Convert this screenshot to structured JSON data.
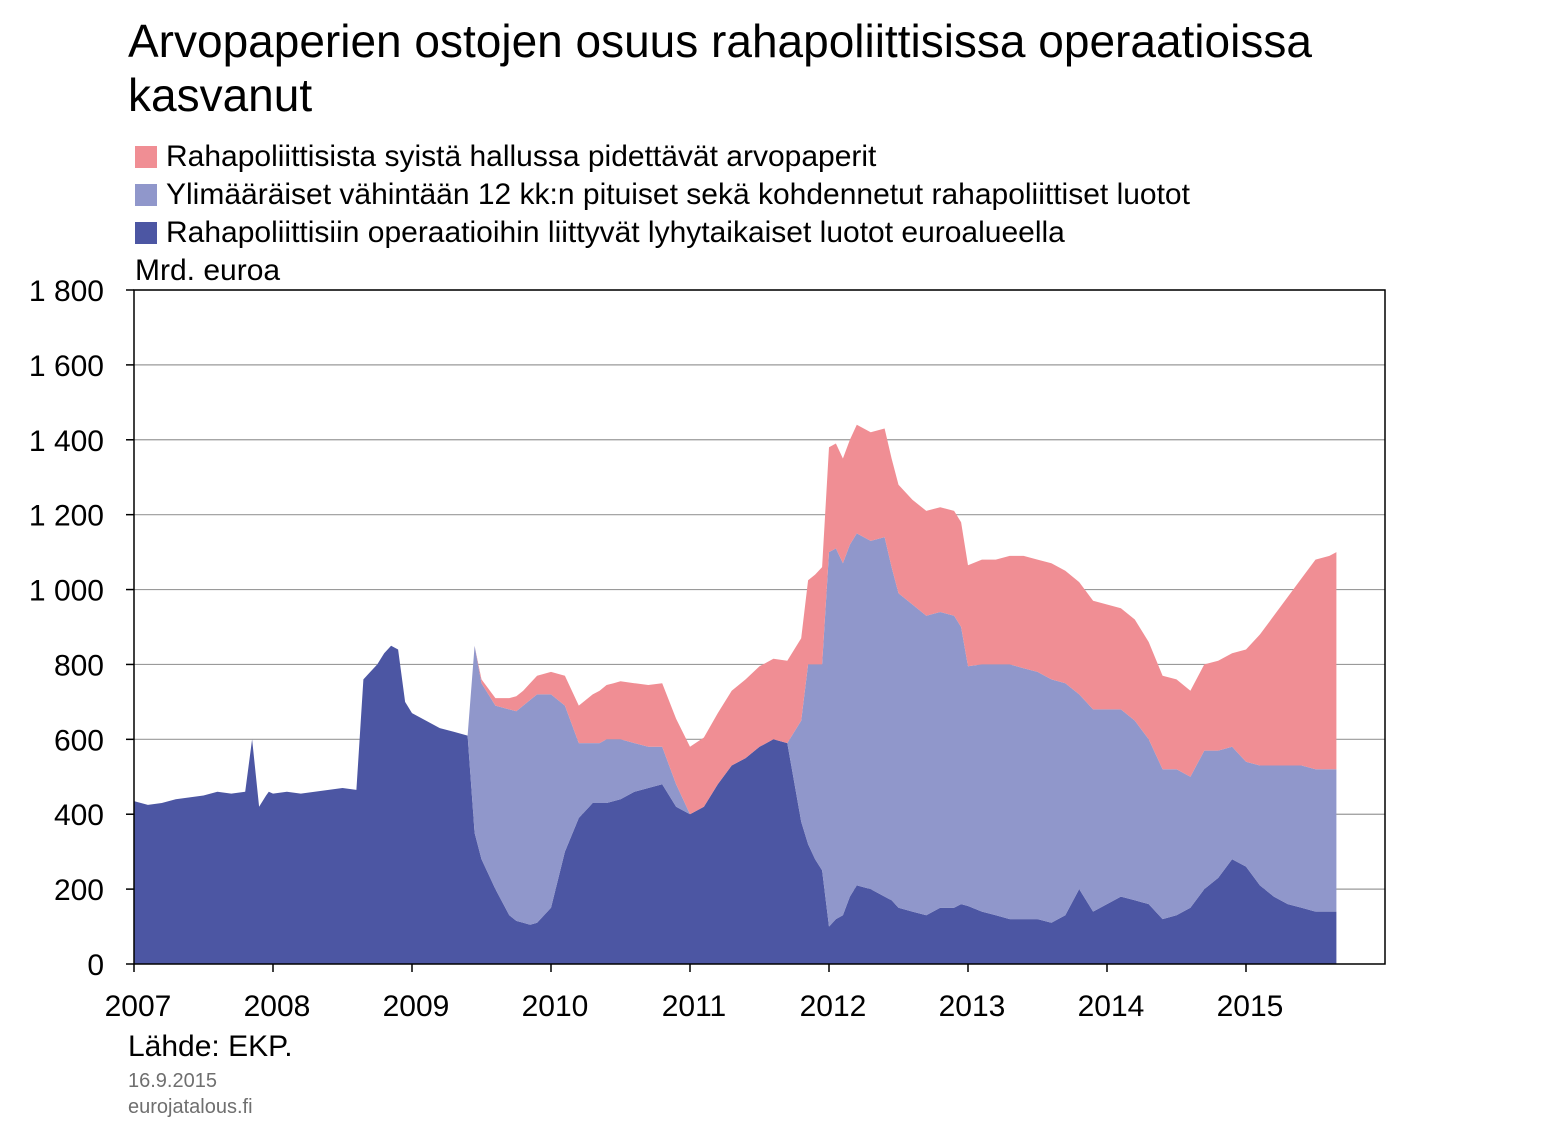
{
  "chart_data": {
    "type": "area",
    "stacked": true,
    "title": "Arvopaperien ostojen osuus rahapoliittisissa operaatioissa kasvanut",
    "unit_label": "Mrd. euroa",
    "ylim": [
      0,
      1800
    ],
    "y_ticks": [
      0,
      200,
      400,
      600,
      800,
      1000,
      1200,
      1400,
      1600,
      1800
    ],
    "y_tick_labels": [
      "0",
      "200",
      "400",
      "600",
      "800",
      "1 000",
      "1 200",
      "1 400",
      "1 600",
      "1 800"
    ],
    "xlim": [
      2007.0,
      2016.0
    ],
    "x_ticks": [
      2007,
      2008,
      2009,
      2010,
      2011,
      2012,
      2013,
      2014,
      2015
    ],
    "x_tick_labels": [
      "2007",
      "2008",
      "2009",
      "2010",
      "2011",
      "2012",
      "2013",
      "2014",
      "2015"
    ],
    "grid": "horizontal",
    "legend_position": "top-left",
    "x": [
      2007.0,
      2007.1,
      2007.2,
      2007.3,
      2007.4,
      2007.5,
      2007.6,
      2007.7,
      2007.8,
      2007.85,
      2007.9,
      2007.95,
      2007.97,
      2008.0,
      2008.1,
      2008.2,
      2008.3,
      2008.4,
      2008.5,
      2008.6,
      2008.65,
      2008.7,
      2008.75,
      2008.8,
      2008.85,
      2008.9,
      2008.95,
      2009.0,
      2009.1,
      2009.2,
      2009.3,
      2009.4,
      2009.45,
      2009.5,
      2009.6,
      2009.7,
      2009.75,
      2009.8,
      2009.85,
      2009.9,
      2010.0,
      2010.1,
      2010.2,
      2010.3,
      2010.35,
      2010.4,
      2010.45,
      2010.5,
      2010.6,
      2010.7,
      2010.8,
      2010.9,
      2011.0,
      2011.1,
      2011.2,
      2011.3,
      2011.4,
      2011.5,
      2011.6,
      2011.7,
      2011.8,
      2011.85,
      2011.9,
      2011.95,
      2012.0,
      2012.05,
      2012.1,
      2012.15,
      2012.2,
      2012.3,
      2012.4,
      2012.45,
      2012.5,
      2012.6,
      2012.7,
      2012.8,
      2012.9,
      2012.95,
      2013.0,
      2013.1,
      2013.2,
      2013.3,
      2013.4,
      2013.5,
      2013.6,
      2013.7,
      2013.8,
      2013.9,
      2014.0,
      2014.1,
      2014.2,
      2014.3,
      2014.4,
      2014.5,
      2014.6,
      2014.7,
      2014.8,
      2014.9,
      2015.0,
      2015.1,
      2015.2,
      2015.3,
      2015.4,
      2015.5,
      2015.6,
      2015.65
    ],
    "series": [
      {
        "name": "Rahapoliittisiin operaatioihin liittyvät lyhytaikaiset luotot euroalueella",
        "color": "#4c56a3",
        "values": [
          435,
          425,
          430,
          440,
          445,
          450,
          460,
          455,
          460,
          600,
          420,
          450,
          460,
          455,
          460,
          455,
          460,
          465,
          470,
          465,
          760,
          780,
          800,
          830,
          850,
          840,
          700,
          670,
          650,
          630,
          620,
          610,
          350,
          280,
          200,
          130,
          115,
          110,
          105,
          110,
          150,
          300,
          390,
          430,
          430,
          430,
          435,
          440,
          460,
          470,
          480,
          420,
          400,
          420,
          480,
          530,
          550,
          580,
          600,
          590,
          380,
          320,
          280,
          250,
          100,
          120,
          130,
          180,
          210,
          200,
          180,
          170,
          150,
          140,
          130,
          150,
          150,
          160,
          155,
          140,
          130,
          120,
          120,
          120,
          110,
          130,
          200,
          140,
          160,
          180,
          170,
          160,
          120,
          130,
          150,
          200,
          230,
          280,
          260,
          210,
          180,
          160,
          150,
          140,
          140,
          140
        ]
      },
      {
        "name": "Ylimääräiset vähintään 12 kk:n pituiset sekä kohdennetut rahapoliittiset luotot",
        "color": "#9097cb",
        "values": [
          0,
          0,
          0,
          0,
          0,
          0,
          0,
          0,
          0,
          0,
          0,
          0,
          0,
          0,
          0,
          0,
          0,
          0,
          0,
          0,
          0,
          0,
          0,
          0,
          0,
          0,
          0,
          0,
          0,
          0,
          0,
          0,
          500,
          470,
          490,
          550,
          560,
          580,
          600,
          610,
          570,
          390,
          200,
          160,
          160,
          170,
          165,
          160,
          130,
          110,
          100,
          60,
          0,
          0,
          0,
          0,
          0,
          0,
          0,
          0,
          270,
          480,
          520,
          550,
          1000,
          990,
          940,
          940,
          940,
          930,
          960,
          890,
          840,
          820,
          800,
          790,
          780,
          740,
          640,
          660,
          670,
          680,
          670,
          660,
          650,
          620,
          520,
          540,
          520,
          500,
          480,
          440,
          400,
          390,
          350,
          370,
          340,
          300,
          280,
          320,
          350,
          370,
          380,
          380,
          380,
          380
        ]
      },
      {
        "name": "Rahapoliittisista syistä hallussa pidettävät arvopaperit",
        "color": "#f08e94",
        "values": [
          0,
          0,
          0,
          0,
          0,
          0,
          0,
          0,
          0,
          0,
          0,
          0,
          0,
          0,
          0,
          0,
          0,
          0,
          0,
          0,
          0,
          0,
          0,
          0,
          0,
          0,
          0,
          0,
          0,
          0,
          0,
          0,
          0,
          10,
          20,
          30,
          40,
          40,
          45,
          50,
          60,
          80,
          100,
          130,
          140,
          145,
          150,
          155,
          160,
          165,
          170,
          175,
          180,
          185,
          190,
          200,
          210,
          215,
          215,
          220,
          220,
          225,
          240,
          260,
          280,
          280,
          280,
          280,
          290,
          290,
          290,
          290,
          290,
          280,
          280,
          280,
          280,
          280,
          270,
          280,
          280,
          290,
          300,
          300,
          310,
          300,
          300,
          290,
          280,
          270,
          270,
          260,
          250,
          240,
          230,
          230,
          240,
          250,
          300,
          350,
          400,
          450,
          500,
          560,
          570,
          580
        ]
      }
    ],
    "source": "Lähde: EKP.",
    "date": "16.9.2015",
    "site": "eurojatalous.fi"
  }
}
